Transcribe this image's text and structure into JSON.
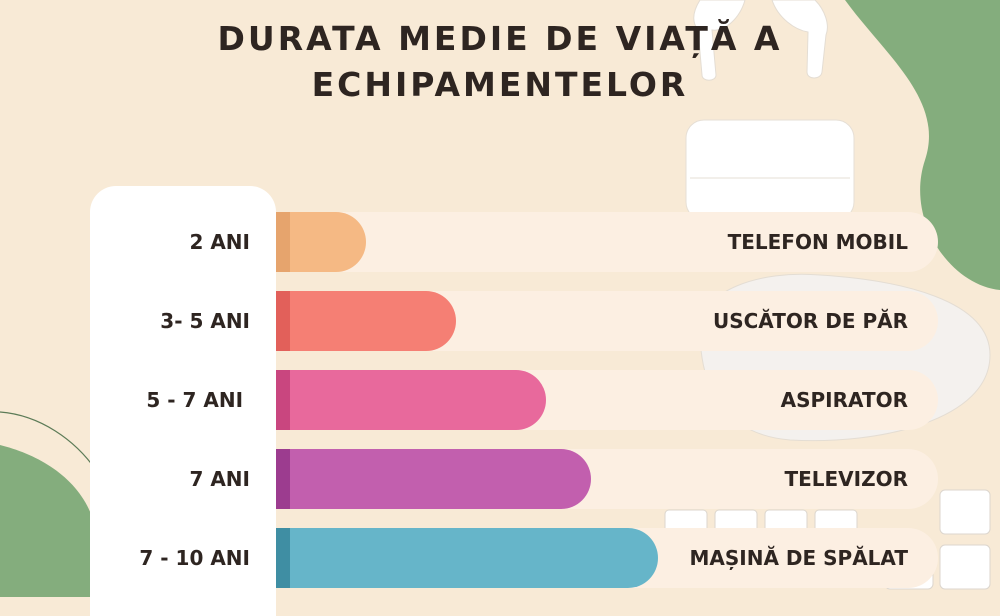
{
  "header": {
    "title": "DURATA MEDIE DE VIAȚĂ A ECHIPAMENTELOR"
  },
  "chart_data": {
    "type": "bar",
    "orientation": "horizontal",
    "title": "DURATA MEDIE DE VIAȚĂ A ECHIPAMENTELOR",
    "categories": [
      "TELEFON MOBIL",
      "USCĂTOR DE PĂR",
      "ASPIRATOR",
      "TELEVIZOR",
      "MAȘINĂ DE SPĂLAT"
    ],
    "value_labels": [
      "2 ANI",
      "3- 5 ANI",
      "5 - 7 ANI ",
      "7 ANI",
      "7 - 10 ANI"
    ],
    "values": [
      2,
      4,
      6,
      7,
      8.5
    ],
    "value_range_low": [
      2,
      3,
      5,
      7,
      7
    ],
    "value_range_high": [
      2,
      5,
      7,
      7,
      10
    ],
    "colors": [
      "#f5b984",
      "#f57f74",
      "#e8699c",
      "#c25fae",
      "#66b5c9"
    ],
    "edge_colors": [
      "#e6a46d",
      "#e2605a",
      "#c9467f",
      "#9c3c8f",
      "#3f8ea3"
    ],
    "legend": "none",
    "grid": false
  }
}
